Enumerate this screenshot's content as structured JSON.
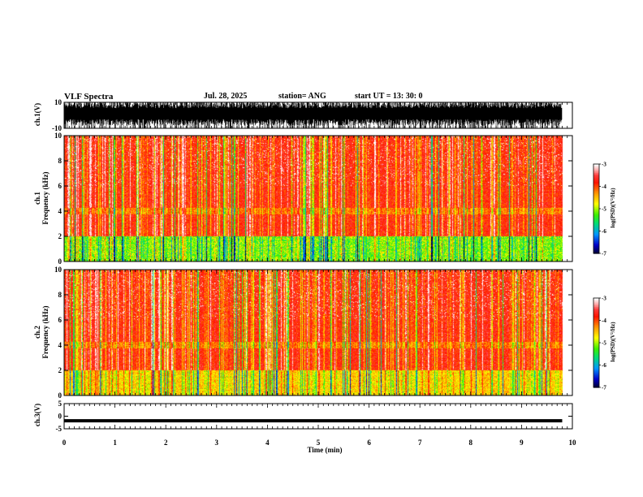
{
  "header": {
    "title": "VLF Spectra",
    "date": "Jul. 28, 2025",
    "station": "station= ANG",
    "start": "start UT =   13: 30: 0"
  },
  "chart_data": [
    {
      "type": "line",
      "name": "ch1-waveform",
      "ylabel": "ch.1(V)",
      "xlim": [
        0,
        10
      ],
      "ylim": [
        -10,
        10
      ],
      "yticks": [
        "10",
        "-10"
      ],
      "data_end_min": 9.8
    },
    {
      "type": "heatmap",
      "name": "ch1-spectrogram",
      "ylabel": "ch.1\nFrequency (kHz)",
      "xlim": [
        0,
        10
      ],
      "ylim": [
        0,
        10
      ],
      "yticks": [
        "0",
        "2",
        "4",
        "6",
        "8",
        "10"
      ],
      "colorbar": {
        "label": "log(PSD)(V²/Hz)",
        "range": [
          -7,
          -3
        ],
        "ticks": [
          "-3",
          "-4",
          "-5",
          "-6",
          "-7"
        ]
      },
      "data_end_min": 9.8
    },
    {
      "type": "heatmap",
      "name": "ch2-spectrogram",
      "ylabel": "ch.2\nFrequency (kHz)",
      "xlim": [
        0,
        10
      ],
      "ylim": [
        0,
        10
      ],
      "yticks": [
        "0",
        "2",
        "4",
        "6",
        "8",
        "10"
      ],
      "colorbar": {
        "label": "log(PSD)(V²/Hz)",
        "range": [
          -7,
          -3
        ],
        "ticks": [
          "-3",
          "-4",
          "-5",
          "-6",
          "-7"
        ]
      },
      "data_end_min": 9.8
    },
    {
      "type": "line",
      "name": "ch3-waveform",
      "ylabel": "ch.3(V)",
      "xlim": [
        0,
        10
      ],
      "ylim": [
        -5,
        5
      ],
      "yticks": [
        "5",
        "0",
        "-5"
      ],
      "constant_value": -1.8,
      "data_end_min": 9.8
    }
  ],
  "xaxis": {
    "label": "Time (min)",
    "ticks": [
      "0",
      "1",
      "2",
      "3",
      "4",
      "5",
      "6",
      "7",
      "8",
      "9",
      "10"
    ]
  }
}
